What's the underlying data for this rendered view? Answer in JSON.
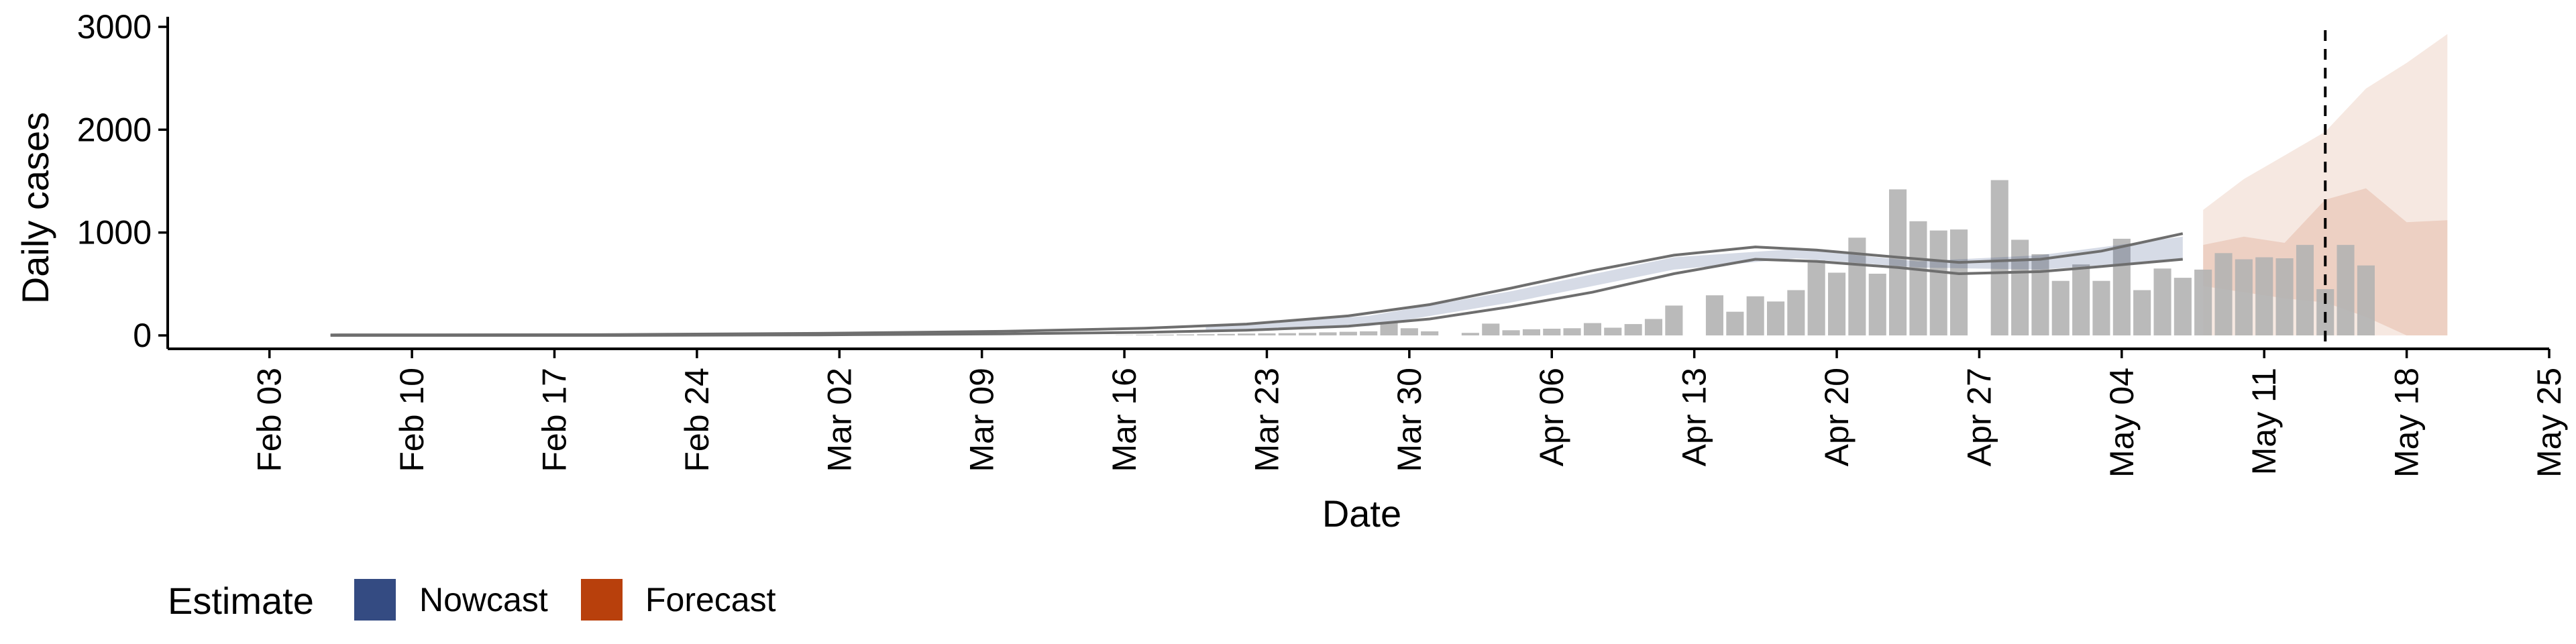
{
  "chart_data": {
    "type": "bar",
    "xlabel": "Date",
    "ylabel": "Daily cases",
    "ylim": [
      0,
      3000
    ],
    "xlim": [
      "2020-01-29",
      "2020-05-25"
    ],
    "y_ticks": [
      0,
      1000,
      2000,
      3000
    ],
    "y_tick_labels": [
      "0",
      "1000",
      "2000",
      "3000"
    ],
    "x_ticks": [
      "2020-02-03",
      "2020-02-10",
      "2020-02-17",
      "2020-02-24",
      "2020-03-02",
      "2020-03-09",
      "2020-03-16",
      "2020-03-23",
      "2020-03-30",
      "2020-04-06",
      "2020-04-13",
      "2020-04-20",
      "2020-04-27",
      "2020-05-04",
      "2020-05-11",
      "2020-05-18",
      "2020-05-25"
    ],
    "x_tick_labels": [
      "Feb 03",
      "Feb 10",
      "Feb 17",
      "Feb 24",
      "Mar 02",
      "Mar 09",
      "Mar 16",
      "Mar 23",
      "Mar 30",
      "Apr 06",
      "Apr 13",
      "Apr 20",
      "Apr 27",
      "May 04",
      "May 11",
      "May 18",
      "May 25"
    ],
    "grid": false,
    "legend": {
      "title": "Estimate",
      "position": "bottom-left",
      "entries": [
        {
          "label": "Nowcast",
          "color": "#344b82"
        },
        {
          "label": "Forecast",
          "color": "#b8400c"
        }
      ]
    },
    "reference_line": {
      "x": "2020-05-14",
      "style": "dashed"
    },
    "observed_cases": {
      "color": "#b3b3b3",
      "start": "2020-03-16",
      "values": [
        2,
        5,
        8,
        10,
        12,
        15,
        18,
        20,
        22,
        25,
        30,
        35,
        40,
        130,
        70,
        40,
        0,
        25,
        115,
        50,
        60,
        65,
        70,
        120,
        75,
        110,
        160,
        290,
        0,
        390,
        230,
        380,
        330,
        440,
        730,
        610,
        950,
        600,
        1420,
        1110,
        1020,
        1030,
        0,
        1510,
        930,
        790,
        530,
        690,
        530,
        940,
        440,
        650,
        560,
        640,
        800,
        740,
        760,
        750,
        880,
        450,
        880,
        680
      ]
    },
    "nowcast_median": {
      "color": "#6e6e6e",
      "dates": [
        "2020-02-06",
        "2020-02-20",
        "2020-03-01",
        "2020-03-10",
        "2020-03-17",
        "2020-03-22",
        "2020-03-27",
        "2020-03-31",
        "2020-04-04",
        "2020-04-08",
        "2020-04-12",
        "2020-04-16",
        "2020-04-19",
        "2020-04-23",
        "2020-04-26",
        "2020-04-30",
        "2020-05-03",
        "2020-05-07"
      ],
      "lower": [
        0,
        0,
        5,
        15,
        30,
        50,
        90,
        160,
        280,
        420,
        600,
        740,
        720,
        660,
        600,
        620,
        670,
        740
      ],
      "upper": [
        5,
        8,
        20,
        40,
        70,
        110,
        190,
        300,
        460,
        630,
        780,
        860,
        830,
        760,
        710,
        740,
        820,
        990
      ]
    },
    "nowcast_band": {
      "color": "#344b82",
      "dates": [
        "2020-03-20",
        "2020-03-28",
        "2020-04-04",
        "2020-04-12",
        "2020-04-18",
        "2020-04-24",
        "2020-04-30",
        "2020-05-07"
      ],
      "lower": [
        30,
        90,
        320,
        640,
        750,
        660,
        640,
        740
      ],
      "upper": [
        80,
        190,
        430,
        760,
        840,
        720,
        780,
        960
      ]
    },
    "forecast_outer": {
      "color": "#b8400c",
      "dates": [
        "2020-05-08",
        "2020-05-10",
        "2020-05-12",
        "2020-05-14",
        "2020-05-16",
        "2020-05-18",
        "2020-05-20"
      ],
      "lower": [
        0,
        0,
        0,
        0,
        0,
        0,
        0
      ],
      "upper": [
        1220,
        1520,
        1750,
        1980,
        2400,
        2650,
        2930
      ]
    },
    "forecast_inner": {
      "color": "#b8400c",
      "dates": [
        "2020-05-08",
        "2020-05-10",
        "2020-05-12",
        "2020-05-14",
        "2020-05-16",
        "2020-05-18",
        "2020-05-20"
      ],
      "lower": [
        480,
        420,
        360,
        320,
        180,
        0,
        0
      ],
      "upper": [
        880,
        960,
        900,
        1320,
        1430,
        1100,
        1120
      ]
    }
  }
}
